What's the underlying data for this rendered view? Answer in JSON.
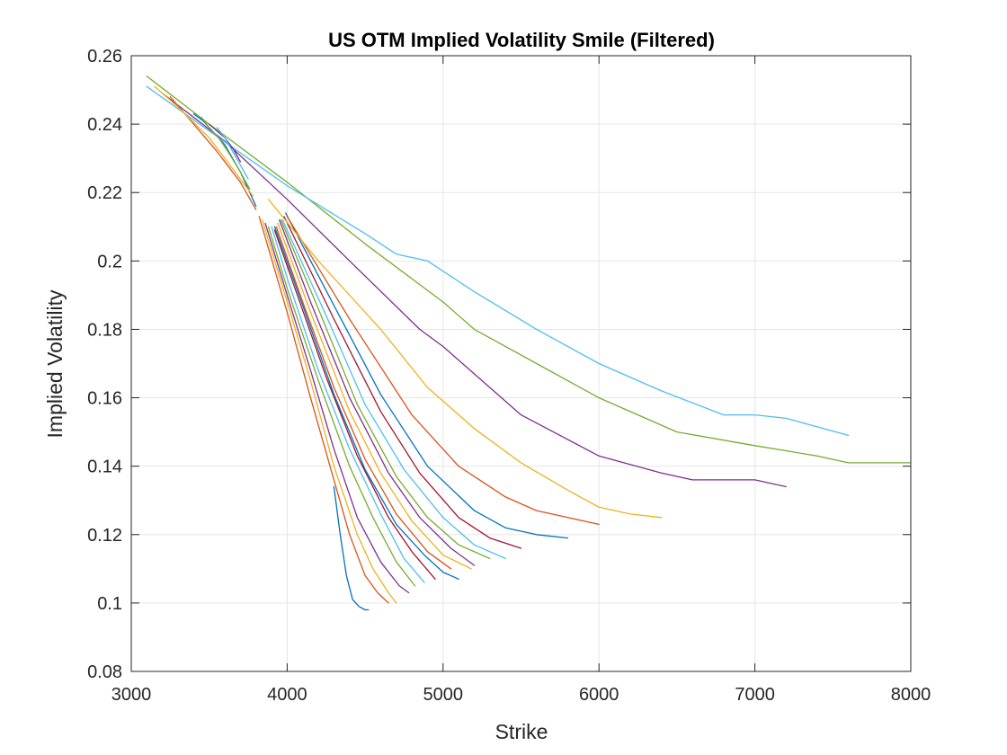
{
  "chart_data": {
    "type": "line",
    "title": "US OTM Implied Volatility Smile (Filtered)",
    "xlabel": "Strike",
    "ylabel": "Implied Volatility",
    "xlim": [
      3000,
      8000
    ],
    "ylim": [
      0.08,
      0.26
    ],
    "xticks": [
      3000,
      4000,
      5000,
      6000,
      7000,
      8000
    ],
    "yticks": [
      0.08,
      0.1,
      0.12,
      0.14,
      0.16,
      0.18,
      0.2,
      0.22,
      0.24,
      0.26
    ],
    "xtick_labels": [
      "3000",
      "4000",
      "5000",
      "6000",
      "7000",
      "8000"
    ],
    "ytick_labels": [
      "0.08",
      "0.1",
      "0.12",
      "0.14",
      "0.16",
      "0.18",
      "0.2",
      "0.22",
      "0.24",
      "0.26"
    ],
    "grid": true,
    "legend": "none",
    "series": [
      {
        "color": "#0072BD",
        "x": [
          4300,
          4340,
          4380,
          4420,
          4460,
          4500,
          4520
        ],
        "y": [
          0.134,
          0.12,
          0.108,
          0.101,
          0.099,
          0.098,
          0.098
        ]
      },
      {
        "color": "#D95319",
        "x": [
          3820,
          4000,
          4150,
          4300,
          4400,
          4500,
          4580,
          4650
        ],
        "y": [
          0.213,
          0.185,
          0.16,
          0.136,
          0.12,
          0.108,
          0.103,
          0.1
        ]
      },
      {
        "color": "#EDB120",
        "x": [
          3840,
          4000,
          4150,
          4300,
          4450,
          4550,
          4650,
          4700
        ],
        "y": [
          0.212,
          0.188,
          0.165,
          0.14,
          0.12,
          0.11,
          0.103,
          0.1
        ]
      },
      {
        "color": "#7E2F8E",
        "x": [
          3860,
          4000,
          4150,
          4300,
          4450,
          4600,
          4720,
          4780
        ],
        "y": [
          0.211,
          0.19,
          0.168,
          0.145,
          0.125,
          0.112,
          0.105,
          0.103
        ]
      },
      {
        "color": "#77AC30",
        "x": [
          3880,
          4000,
          4200,
          4400,
          4550,
          4700,
          4820
        ],
        "y": [
          0.21,
          0.192,
          0.165,
          0.14,
          0.125,
          0.112,
          0.105
        ]
      },
      {
        "color": "#4DBEEE",
        "x": [
          3900,
          4000,
          4200,
          4400,
          4600,
          4750,
          4880
        ],
        "y": [
          0.21,
          0.195,
          0.168,
          0.145,
          0.126,
          0.113,
          0.106
        ]
      },
      {
        "color": "#A2142F",
        "x": [
          3920,
          4050,
          4250,
          4450,
          4650,
          4800,
          4950
        ],
        "y": [
          0.209,
          0.192,
          0.166,
          0.143,
          0.125,
          0.115,
          0.107
        ]
      },
      {
        "color": "#0072BD",
        "x": [
          3920,
          4100,
          4300,
          4500,
          4700,
          4880,
          5000,
          5100
        ],
        "y": [
          0.21,
          0.187,
          0.161,
          0.139,
          0.123,
          0.114,
          0.109,
          0.107
        ]
      },
      {
        "color": "#D95319",
        "x": [
          3930,
          4100,
          4300,
          4500,
          4700,
          4900,
          5050
        ],
        "y": [
          0.21,
          0.188,
          0.163,
          0.142,
          0.126,
          0.115,
          0.11
        ]
      },
      {
        "color": "#EDB120",
        "x": [
          3940,
          4150,
          4400,
          4600,
          4800,
          5000,
          5180
        ],
        "y": [
          0.211,
          0.185,
          0.156,
          0.138,
          0.124,
          0.114,
          0.11
        ]
      },
      {
        "color": "#7E2F8E",
        "x": [
          3950,
          4150,
          4400,
          4650,
          4850,
          5050,
          5200
        ],
        "y": [
          0.212,
          0.188,
          0.16,
          0.138,
          0.125,
          0.116,
          0.111
        ]
      },
      {
        "color": "#77AC30",
        "x": [
          3960,
          4200,
          4450,
          4700,
          4900,
          5100,
          5300
        ],
        "y": [
          0.212,
          0.186,
          0.158,
          0.137,
          0.125,
          0.117,
          0.113
        ]
      },
      {
        "color": "#4DBEEE",
        "x": [
          3970,
          4250,
          4500,
          4750,
          5000,
          5200,
          5400
        ],
        "y": [
          0.212,
          0.184,
          0.158,
          0.139,
          0.125,
          0.117,
          0.113
        ]
      },
      {
        "color": "#A2142F",
        "x": [
          3980,
          4300,
          4600,
          4850,
          5100,
          5300,
          5500
        ],
        "y": [
          0.213,
          0.183,
          0.156,
          0.138,
          0.125,
          0.119,
          0.116
        ]
      },
      {
        "color": "#0072BD",
        "x": [
          3990,
          4300,
          4600,
          4900,
          5200,
          5400,
          5600,
          5800
        ],
        "y": [
          0.214,
          0.187,
          0.161,
          0.14,
          0.127,
          0.122,
          0.12,
          0.119
        ]
      },
      {
        "color": "#D95319",
        "x": [
          4000,
          4400,
          4800,
          5100,
          5400,
          5600,
          5800,
          6000
        ],
        "y": [
          0.213,
          0.183,
          0.155,
          0.14,
          0.131,
          0.127,
          0.125,
          0.123
        ]
      },
      {
        "color": "#EDB120",
        "x": [
          3880,
          4200,
          4600,
          4900,
          5200,
          5500,
          5800,
          6000,
          6200,
          6400
        ],
        "y": [
          0.218,
          0.2,
          0.18,
          0.163,
          0.151,
          0.141,
          0.133,
          0.128,
          0.126,
          0.125
        ]
      },
      {
        "color": "#7E2F8E",
        "x": [
          3200,
          3600,
          4000,
          4400,
          4850,
          5000,
          5500,
          6000,
          6400,
          6600,
          7000,
          7200
        ],
        "y": [
          0.249,
          0.235,
          0.218,
          0.2,
          0.18,
          0.175,
          0.155,
          0.143,
          0.138,
          0.136,
          0.136,
          0.134
        ]
      },
      {
        "color": "#77AC30",
        "x": [
          3100,
          3500,
          4000,
          4500,
          5000,
          5200,
          5600,
          6000,
          6500,
          7000,
          7400,
          7600,
          8000
        ],
        "y": [
          0.254,
          0.24,
          0.223,
          0.205,
          0.188,
          0.18,
          0.17,
          0.16,
          0.15,
          0.146,
          0.143,
          0.141,
          0.141
        ]
      },
      {
        "color": "#4DBEEE",
        "x": [
          3100,
          3500,
          4000,
          4500,
          4700,
          4900,
          5200,
          5600,
          6000,
          6400,
          6800,
          7000,
          7200,
          7600
        ],
        "y": [
          0.251,
          0.238,
          0.222,
          0.208,
          0.202,
          0.2,
          0.191,
          0.18,
          0.17,
          0.162,
          0.155,
          0.155,
          0.154,
          0.149
        ]
      },
      {
        "color": "#0072BD",
        "x": [
          3400,
          3460,
          3520,
          3600,
          3700,
          3800
        ],
        "y": [
          0.243,
          0.241,
          0.238,
          0.234,
          0.226,
          0.216
        ]
      },
      {
        "color": "#D95319",
        "x": [
          3250,
          3400,
          3550,
          3700,
          3800
        ],
        "y": [
          0.248,
          0.24,
          0.232,
          0.223,
          0.215
        ]
      },
      {
        "color": "#EDB120",
        "x": [
          3150,
          3300,
          3500,
          3650,
          3780
        ],
        "y": [
          0.251,
          0.245,
          0.236,
          0.227,
          0.219
        ]
      },
      {
        "color": "#7E2F8E",
        "x": [
          3500,
          3550,
          3600,
          3650,
          3700
        ],
        "y": [
          0.24,
          0.238,
          0.236,
          0.233,
          0.229
        ]
      },
      {
        "color": "#77AC30",
        "x": [
          3450,
          3500,
          3560,
          3620,
          3700,
          3760
        ],
        "y": [
          0.242,
          0.239,
          0.236,
          0.232,
          0.226,
          0.221
        ]
      },
      {
        "color": "#4DBEEE",
        "x": [
          3550,
          3600,
          3650,
          3700,
          3750
        ],
        "y": [
          0.239,
          0.236,
          0.232,
          0.228,
          0.224
        ]
      }
    ]
  }
}
